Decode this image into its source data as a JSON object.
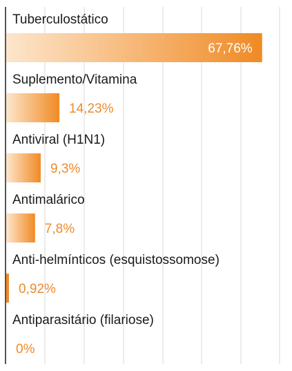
{
  "chart_data": {
    "type": "bar",
    "orientation": "horizontal",
    "categories": [
      "Tuberculostático",
      "Suplemento/Vitamina",
      "Antiviral (H1N1)",
      "Antimalárico",
      "Anti-helmínticos (esquistossomose)",
      "Antiparasitário (filariose)"
    ],
    "values": [
      67.76,
      14.23,
      9.3,
      7.8,
      0.92,
      0
    ],
    "value_labels": [
      "67,76%",
      "14,23%",
      "9,3%",
      "7,8%",
      "0,92%",
      "0%"
    ],
    "xlim": [
      0,
      70
    ],
    "grid": true,
    "bar_color": "#f08a24",
    "bar_fade_color": "#fde6cc",
    "axis_color": "#555555",
    "grid_color": "#d9d9d9"
  }
}
